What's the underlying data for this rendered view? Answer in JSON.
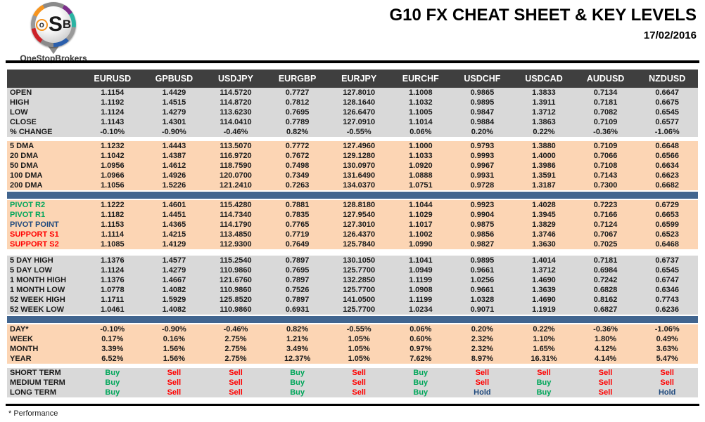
{
  "meta": {
    "title": "G10 FX CHEAT SHEET & KEY LEVELS",
    "date": "17/02/2016",
    "footnote": "* Performance",
    "logo": {
      "o": "o",
      "s": "S",
      "b": "B",
      "brand": "OneStopBrokers"
    }
  },
  "colors": {
    "header_bg": "#3F3F3F",
    "header_text": "#FFFFFF",
    "gray_row": "#D9D9D9",
    "peach_row": "#FCD5B4",
    "divider_blue": "#41658F",
    "buy_green": "#00A65A",
    "sell_red": "#FF0000",
    "hold_navy": "#1F497D",
    "label_default": "#1A1A1A"
  },
  "chart_data": {
    "type": "table",
    "title": "G10 FX CHEAT SHEET & KEY LEVELS",
    "date": "17/02/2016",
    "columns": [
      "EURUSD",
      "GPBUSD",
      "USDJPY",
      "EURGBP",
      "EURJPY",
      "EURCHF",
      "USDCHF",
      "USDCAD",
      "AUDUSD",
      "NZDUSD"
    ],
    "sections": [
      {
        "id": "ohlc",
        "bg": "gray",
        "separator_before": "none",
        "rows": [
          {
            "label": "OPEN",
            "values": [
              "1.1154",
              "1.4429",
              "114.5720",
              "0.7727",
              "127.8010",
              "1.1008",
              "0.9865",
              "1.3833",
              "0.7134",
              "0.6647"
            ]
          },
          {
            "label": "HIGH",
            "values": [
              "1.1192",
              "1.4515",
              "114.8720",
              "0.7812",
              "128.1640",
              "1.1032",
              "0.9895",
              "1.3911",
              "0.7181",
              "0.6675"
            ]
          },
          {
            "label": "LOW",
            "values": [
              "1.1124",
              "1.4279",
              "113.6230",
              "0.7695",
              "126.6470",
              "1.1005",
              "0.9847",
              "1.3712",
              "0.7082",
              "0.6545"
            ]
          },
          {
            "label": "CLOSE",
            "values": [
              "1.1143",
              "1.4301",
              "114.0410",
              "0.7789",
              "127.0910",
              "1.1014",
              "0.9884",
              "1.3863",
              "0.7109",
              "0.6577"
            ]
          },
          {
            "label": "% CHANGE",
            "values": [
              "-0.10%",
              "-0.90%",
              "-0.46%",
              "0.82%",
              "-0.55%",
              "0.06%",
              "0.20%",
              "0.22%",
              "-0.36%",
              "-1.06%"
            ]
          }
        ]
      },
      {
        "id": "dma",
        "bg": "peach",
        "separator_before": "gap",
        "rows": [
          {
            "label": "5 DMA",
            "values": [
              "1.1232",
              "1.4443",
              "113.5070",
              "0.7772",
              "127.4960",
              "1.1000",
              "0.9793",
              "1.3880",
              "0.7109",
              "0.6648"
            ]
          },
          {
            "label": "20 DMA",
            "values": [
              "1.1042",
              "1.4387",
              "116.9720",
              "0.7672",
              "129.1280",
              "1.1033",
              "0.9993",
              "1.4000",
              "0.7066",
              "0.6566"
            ]
          },
          {
            "label": "50 DMA",
            "values": [
              "1.0956",
              "1.4612",
              "118.7590",
              "0.7498",
              "130.0970",
              "1.0920",
              "0.9967",
              "1.3986",
              "0.7108",
              "0.6634"
            ]
          },
          {
            "label": "100 DMA",
            "values": [
              "1.0966",
              "1.4926",
              "120.0700",
              "0.7349",
              "131.6490",
              "1.0888",
              "0.9931",
              "1.3591",
              "0.7143",
              "0.6623"
            ]
          },
          {
            "label": "200 DMA",
            "values": [
              "1.1056",
              "1.5226",
              "121.2410",
              "0.7263",
              "134.0370",
              "1.0751",
              "0.9728",
              "1.3187",
              "0.7300",
              "0.6682"
            ]
          }
        ]
      },
      {
        "id": "pivots",
        "bg": "peach",
        "separator_before": "blue-bar",
        "rows": [
          {
            "label": "PIVOT R2",
            "label_color": "green",
            "values": [
              "1.1222",
              "1.4601",
              "115.4280",
              "0.7881",
              "128.8180",
              "1.1044",
              "0.9923",
              "1.4028",
              "0.7223",
              "0.6729"
            ]
          },
          {
            "label": "PIVOT R1",
            "label_color": "green",
            "values": [
              "1.1182",
              "1.4451",
              "114.7340",
              "0.7835",
              "127.9540",
              "1.1029",
              "0.9904",
              "1.3945",
              "0.7166",
              "0.6653"
            ]
          },
          {
            "label": "PIVOT POINT",
            "label_color": "navy",
            "values": [
              "1.1153",
              "1.4365",
              "114.1790",
              "0.7765",
              "127.3010",
              "1.1017",
              "0.9875",
              "1.3829",
              "0.7124",
              "0.6599"
            ]
          },
          {
            "label": "SUPPORT S1",
            "label_color": "red",
            "values": [
              "1.1114",
              "1.4215",
              "113.4850",
              "0.7719",
              "126.4370",
              "1.1002",
              "0.9856",
              "1.3746",
              "0.7067",
              "0.6523"
            ]
          },
          {
            "label": "SUPPORT S2",
            "label_color": "red",
            "values": [
              "1.1085",
              "1.4129",
              "112.9300",
              "0.7649",
              "125.7840",
              "1.0990",
              "0.9827",
              "1.3630",
              "0.7025",
              "0.6468"
            ]
          }
        ]
      },
      {
        "id": "ranges",
        "bg": "gray",
        "separator_before": "gap-big",
        "rows": [
          {
            "label": "5 DAY HIGH",
            "values": [
              "1.1376",
              "1.4577",
              "115.2540",
              "0.7897",
              "130.1050",
              "1.1041",
              "0.9895",
              "1.4014",
              "0.7181",
              "0.6737"
            ]
          },
          {
            "label": "5 DAY LOW",
            "values": [
              "1.1124",
              "1.4279",
              "110.9860",
              "0.7695",
              "125.7700",
              "1.0949",
              "0.9661",
              "1.3712",
              "0.6984",
              "0.6545"
            ]
          },
          {
            "label": "1 MONTH HIGH",
            "values": [
              "1.1376",
              "1.4667",
              "121.6760",
              "0.7897",
              "132.2850",
              "1.1199",
              "1.0256",
              "1.4690",
              "0.7242",
              "0.6747"
            ]
          },
          {
            "label": "1 MONTH LOW",
            "values": [
              "1.0778",
              "1.4082",
              "110.9860",
              "0.7526",
              "125.7700",
              "1.0908",
              "0.9661",
              "1.3639",
              "0.6828",
              "0.6346"
            ]
          },
          {
            "label": "52 WEEK HIGH",
            "values": [
              "1.1711",
              "1.5929",
              "125.8520",
              "0.7897",
              "141.0500",
              "1.1199",
              "1.0328",
              "1.4690",
              "0.8162",
              "0.7743"
            ]
          },
          {
            "label": "52 WEEK LOW",
            "values": [
              "1.0461",
              "1.4082",
              "110.9860",
              "0.6931",
              "125.7700",
              "1.0234",
              "0.9071",
              "1.1919",
              "0.6827",
              "0.6236"
            ]
          }
        ]
      },
      {
        "id": "performance",
        "bg": "peach",
        "separator_before": "blue-bar",
        "rows": [
          {
            "label": "DAY*",
            "values": [
              "-0.10%",
              "-0.90%",
              "-0.46%",
              "0.82%",
              "-0.55%",
              "0.06%",
              "0.20%",
              "0.22%",
              "-0.36%",
              "-1.06%"
            ]
          },
          {
            "label": "WEEK",
            "values": [
              "0.17%",
              "0.16%",
              "2.75%",
              "1.21%",
              "1.05%",
              "0.60%",
              "2.32%",
              "1.10%",
              "1.80%",
              "0.49%"
            ]
          },
          {
            "label": "MONTH",
            "values": [
              "3.39%",
              "1.56%",
              "2.75%",
              "3.49%",
              "1.05%",
              "0.97%",
              "2.32%",
              "1.65%",
              "4.12%",
              "3.63%"
            ]
          },
          {
            "label": "YEAR",
            "values": [
              "6.52%",
              "1.56%",
              "2.75%",
              "12.37%",
              "1.05%",
              "7.62%",
              "8.97%",
              "16.31%",
              "4.14%",
              "5.47%"
            ]
          }
        ]
      },
      {
        "id": "signals",
        "bg": "gray",
        "separator_before": "gap",
        "signal_row": true,
        "rows": [
          {
            "label": "SHORT TERM",
            "values": [
              "Buy",
              "Sell",
              "Sell",
              "Buy",
              "Sell",
              "Buy",
              "Sell",
              "Sell",
              "Sell",
              "Sell"
            ]
          },
          {
            "label": "MEDIUM TERM",
            "values": [
              "Buy",
              "Sell",
              "Sell",
              "Buy",
              "Sell",
              "Buy",
              "Sell",
              "Buy",
              "Sell",
              "Sell"
            ]
          },
          {
            "label": "LONG TERM",
            "values": [
              "Buy",
              "Sell",
              "Sell",
              "Buy",
              "Sell",
              "Buy",
              "Hold",
              "Buy",
              "Sell",
              "Hold"
            ]
          }
        ]
      }
    ]
  }
}
